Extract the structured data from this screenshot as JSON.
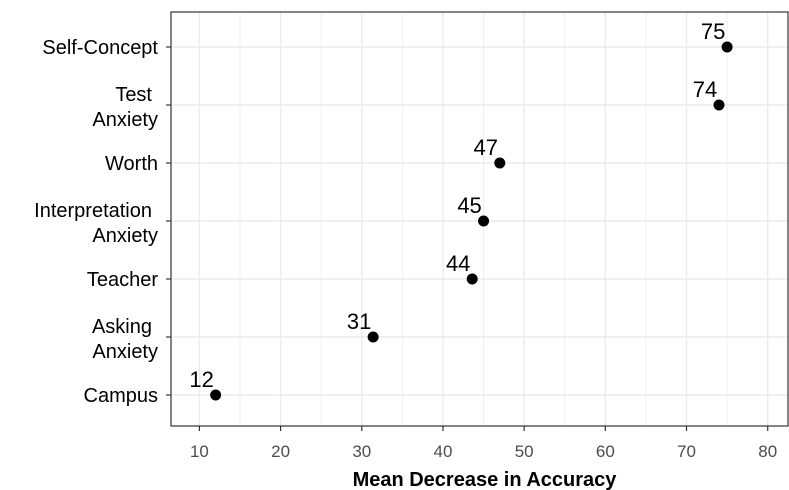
{
  "chart_data": {
    "type": "scatter",
    "title": "",
    "xlabel": "Mean Decrease in Accuracy",
    "ylabel": "",
    "xlim": [
      6.5,
      82.5
    ],
    "xticks": [
      10,
      20,
      30,
      40,
      50,
      60,
      70,
      80
    ],
    "xtick_labels": [
      "10",
      "20",
      "30",
      "40",
      "50",
      "60",
      "70",
      "80"
    ],
    "grid": true,
    "legend": "none",
    "point_color": "#000000",
    "grid_color": "#ebebeb",
    "points": [
      {
        "category": [
          "Self-Concept"
        ],
        "value": 75,
        "label": "75"
      },
      {
        "category": [
          "Test",
          "Anxiety"
        ],
        "value": 74,
        "label": "74"
      },
      {
        "category": [
          "Worth"
        ],
        "value": 47,
        "label": "47"
      },
      {
        "category": [
          "Interpretation",
          "Anxiety"
        ],
        "value": 45,
        "label": "45"
      },
      {
        "category": [
          "Teacher"
        ],
        "value": 43.6,
        "label": "44"
      },
      {
        "category": [
          "Asking",
          "Anxiety"
        ],
        "value": 31.4,
        "label": "31"
      },
      {
        "category": [
          "Campus"
        ],
        "value": 12,
        "label": "12"
      }
    ]
  }
}
